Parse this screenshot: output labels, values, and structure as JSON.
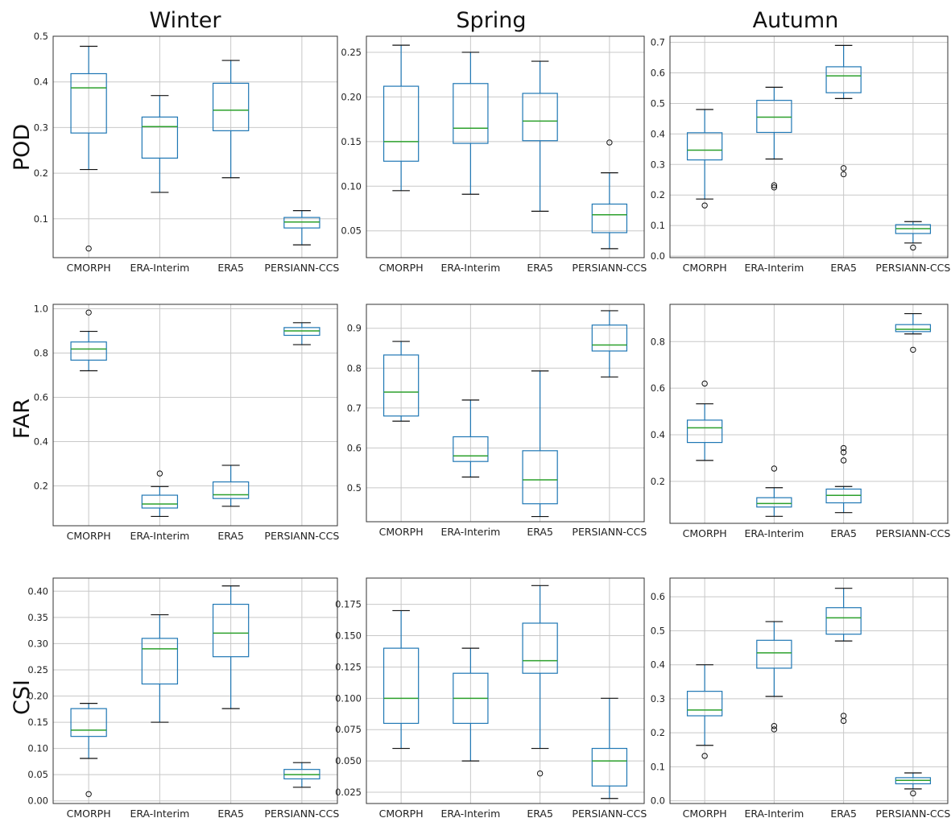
{
  "columns": [
    "Winter",
    "Spring",
    "Autumn"
  ],
  "rows": [
    "POD",
    "FAR",
    "CSI"
  ],
  "chart_data": [
    {
      "type": "box",
      "row": "POD",
      "column": "Winter",
      "categories": [
        "CMORPH",
        "ERA-Interim",
        "ERA5",
        "PERSIANN-CCS"
      ],
      "ylim": [
        0.015,
        0.5
      ],
      "yticks": [
        0.1,
        0.2,
        0.3,
        0.4,
        0.5
      ],
      "ytick_labels": [
        "0.1",
        "0.2",
        "0.3",
        "0.4",
        "0.5"
      ],
      "grid": true,
      "boxes": [
        {
          "whislo": 0.208,
          "q1": 0.288,
          "med": 0.387,
          "q3": 0.418,
          "whishi": 0.478,
          "fliers": [
            0.035
          ]
        },
        {
          "whislo": 0.158,
          "q1": 0.233,
          "med": 0.302,
          "q3": 0.323,
          "whishi": 0.37,
          "fliers": []
        },
        {
          "whislo": 0.19,
          "q1": 0.293,
          "med": 0.338,
          "q3": 0.397,
          "whishi": 0.447,
          "fliers": []
        },
        {
          "whislo": 0.043,
          "q1": 0.08,
          "med": 0.093,
          "q3": 0.103,
          "whishi": 0.118,
          "fliers": []
        }
      ]
    },
    {
      "type": "box",
      "row": "POD",
      "column": "Spring",
      "categories": [
        "CMORPH",
        "ERA-Interim",
        "ERA5",
        "PERSIANN-CCS"
      ],
      "ylim": [
        0.02,
        0.268
      ],
      "yticks": [
        0.05,
        0.1,
        0.15,
        0.2,
        0.25
      ],
      "ytick_labels": [
        "0.05",
        "0.10",
        "0.15",
        "0.20",
        "0.25"
      ],
      "grid": true,
      "boxes": [
        {
          "whislo": 0.095,
          "q1": 0.128,
          "med": 0.15,
          "q3": 0.212,
          "whishi": 0.258,
          "fliers": []
        },
        {
          "whislo": 0.091,
          "q1": 0.148,
          "med": 0.165,
          "q3": 0.215,
          "whishi": 0.25,
          "fliers": []
        },
        {
          "whislo": 0.072,
          "q1": 0.151,
          "med": 0.173,
          "q3": 0.204,
          "whishi": 0.24,
          "fliers": []
        },
        {
          "whislo": 0.03,
          "q1": 0.048,
          "med": 0.068,
          "q3": 0.08,
          "whishi": 0.115,
          "fliers": [
            0.149
          ]
        }
      ]
    },
    {
      "type": "box",
      "row": "POD",
      "column": "Autumn",
      "categories": [
        "CMORPH",
        "ERA-Interim",
        "ERA5",
        "PERSIANN-CCS"
      ],
      "ylim": [
        -0.005,
        0.72
      ],
      "yticks": [
        0,
        0.1,
        0.2,
        0.3,
        0.4,
        0.5,
        0.6,
        0.7
      ],
      "ytick_labels": [
        "0.0",
        "0.1",
        "0.2",
        "0.3",
        "0.4",
        "0.5",
        "0.6",
        "0.7"
      ],
      "grid": true,
      "boxes": [
        {
          "whislo": 0.187,
          "q1": 0.315,
          "med": 0.347,
          "q3": 0.404,
          "whishi": 0.48,
          "fliers": [
            0.166
          ]
        },
        {
          "whislo": 0.318,
          "q1": 0.405,
          "med": 0.455,
          "q3": 0.51,
          "whishi": 0.553,
          "fliers": [
            0.225,
            0.232
          ]
        },
        {
          "whislo": 0.516,
          "q1": 0.535,
          "med": 0.59,
          "q3": 0.62,
          "whishi": 0.69,
          "fliers": [
            0.268,
            0.288
          ]
        },
        {
          "whislo": 0.043,
          "q1": 0.074,
          "med": 0.09,
          "q3": 0.103,
          "whishi": 0.113,
          "fliers": [
            0.028
          ]
        }
      ]
    },
    {
      "type": "box",
      "row": "FAR",
      "column": "Winter",
      "categories": [
        "CMORPH",
        "ERA-Interim",
        "ERA5",
        "PERSIANN-CCS"
      ],
      "ylim": [
        0.02,
        1.02
      ],
      "yticks": [
        0.2,
        0.4,
        0.6,
        0.8,
        1.0
      ],
      "ytick_labels": [
        "0.2",
        "0.4",
        "0.6",
        "0.8",
        "1.0"
      ],
      "grid": true,
      "boxes": [
        {
          "whislo": 0.72,
          "q1": 0.768,
          "med": 0.818,
          "q3": 0.85,
          "whishi": 0.898,
          "fliers": [
            0.983
          ]
        },
        {
          "whislo": 0.062,
          "q1": 0.1,
          "med": 0.118,
          "q3": 0.158,
          "whishi": 0.197,
          "fliers": [
            0.256
          ]
        },
        {
          "whislo": 0.108,
          "q1": 0.143,
          "med": 0.16,
          "q3": 0.218,
          "whishi": 0.293,
          "fliers": []
        },
        {
          "whislo": 0.838,
          "q1": 0.88,
          "med": 0.9,
          "q3": 0.915,
          "whishi": 0.937,
          "fliers": []
        }
      ]
    },
    {
      "type": "box",
      "row": "FAR",
      "column": "Spring",
      "categories": [
        "CMORPH",
        "ERA-Interim",
        "ERA5",
        "PERSIANN-CCS"
      ],
      "ylim": [
        0.415,
        0.96
      ],
      "yticks": [
        0.5,
        0.6,
        0.7,
        0.8,
        0.9
      ],
      "ytick_labels": [
        "0.5",
        "0.6",
        "0.7",
        "0.8",
        "0.9"
      ],
      "grid": true,
      "boxes": [
        {
          "whislo": 0.667,
          "q1": 0.68,
          "med": 0.74,
          "q3": 0.833,
          "whishi": 0.867,
          "fliers": []
        },
        {
          "whislo": 0.527,
          "q1": 0.566,
          "med": 0.58,
          "q3": 0.628,
          "whishi": 0.72,
          "fliers": []
        },
        {
          "whislo": 0.428,
          "q1": 0.46,
          "med": 0.52,
          "q3": 0.593,
          "whishi": 0.793,
          "fliers": []
        },
        {
          "whislo": 0.778,
          "q1": 0.843,
          "med": 0.858,
          "q3": 0.908,
          "whishi": 0.944,
          "fliers": []
        }
      ]
    },
    {
      "type": "box",
      "row": "FAR",
      "column": "Autumn",
      "categories": [
        "CMORPH",
        "ERA-Interim",
        "ERA5",
        "PERSIANN-CCS"
      ],
      "ylim": [
        0.02,
        0.96
      ],
      "yticks": [
        0.2,
        0.4,
        0.6,
        0.8
      ],
      "ytick_labels": [
        "0.2",
        "0.4",
        "0.6",
        "0.8"
      ],
      "grid": true,
      "boxes": [
        {
          "whislo": 0.29,
          "q1": 0.367,
          "med": 0.43,
          "q3": 0.463,
          "whishi": 0.533,
          "fliers": [
            0.62
          ]
        },
        {
          "whislo": 0.05,
          "q1": 0.09,
          "med": 0.105,
          "q3": 0.13,
          "whishi": 0.173,
          "fliers": [
            0.255
          ]
        },
        {
          "whislo": 0.066,
          "q1": 0.108,
          "med": 0.14,
          "q3": 0.167,
          "whishi": 0.178,
          "fliers": [
            0.29,
            0.325,
            0.343
          ]
        },
        {
          "whislo": 0.833,
          "q1": 0.843,
          "med": 0.853,
          "q3": 0.873,
          "whishi": 0.92,
          "fliers": [
            0.765
          ]
        }
      ]
    },
    {
      "type": "box",
      "row": "CSI",
      "column": "Winter",
      "categories": [
        "CMORPH",
        "ERA-Interim",
        "ERA5",
        "PERSIANN-CCS"
      ],
      "ylim": [
        -0.005,
        0.425
      ],
      "yticks": [
        0,
        0.05,
        0.1,
        0.15,
        0.2,
        0.25,
        0.3,
        0.35,
        0.4
      ],
      "ytick_labels": [
        "0.00",
        "0.05",
        "0.10",
        "0.15",
        "0.20",
        "0.25",
        "0.30",
        "0.35",
        "0.40"
      ],
      "grid": true,
      "boxes": [
        {
          "whislo": 0.081,
          "q1": 0.123,
          "med": 0.135,
          "q3": 0.176,
          "whishi": 0.186,
          "fliers": [
            0.013
          ]
        },
        {
          "whislo": 0.15,
          "q1": 0.223,
          "med": 0.29,
          "q3": 0.31,
          "whishi": 0.355,
          "fliers": []
        },
        {
          "whislo": 0.176,
          "q1": 0.275,
          "med": 0.32,
          "q3": 0.375,
          "whishi": 0.41,
          "fliers": []
        },
        {
          "whislo": 0.026,
          "q1": 0.042,
          "med": 0.05,
          "q3": 0.06,
          "whishi": 0.073,
          "fliers": []
        }
      ]
    },
    {
      "type": "box",
      "row": "CSI",
      "column": "Spring",
      "categories": [
        "CMORPH",
        "ERA-Interim",
        "ERA5",
        "PERSIANN-CCS"
      ],
      "ylim": [
        0.016,
        0.196
      ],
      "yticks": [
        0.025,
        0.05,
        0.075,
        0.1,
        0.125,
        0.15,
        0.175
      ],
      "ytick_labels": [
        "0.025",
        "0.050",
        "0.075",
        "0.100",
        "0.125",
        "0.150",
        "0.175"
      ],
      "grid": true,
      "boxes": [
        {
          "whislo": 0.06,
          "q1": 0.08,
          "med": 0.1,
          "q3": 0.14,
          "whishi": 0.17,
          "fliers": []
        },
        {
          "whislo": 0.05,
          "q1": 0.08,
          "med": 0.1,
          "q3": 0.12,
          "whishi": 0.14,
          "fliers": []
        },
        {
          "whislo": 0.06,
          "q1": 0.12,
          "med": 0.13,
          "q3": 0.16,
          "whishi": 0.19,
          "fliers": [
            0.04
          ]
        },
        {
          "whislo": 0.02,
          "q1": 0.03,
          "med": 0.05,
          "q3": 0.06,
          "whishi": 0.1,
          "fliers": []
        }
      ]
    },
    {
      "type": "box",
      "row": "CSI",
      "column": "Autumn",
      "categories": [
        "CMORPH",
        "ERA-Interim",
        "ERA5",
        "PERSIANN-CCS"
      ],
      "ylim": [
        -0.008,
        0.655
      ],
      "yticks": [
        0,
        0.1,
        0.2,
        0.3,
        0.4,
        0.5,
        0.6
      ],
      "ytick_labels": [
        "0.0",
        "0.1",
        "0.2",
        "0.3",
        "0.4",
        "0.5",
        "0.6"
      ],
      "grid": true,
      "boxes": [
        {
          "whislo": 0.163,
          "q1": 0.25,
          "med": 0.267,
          "q3": 0.322,
          "whishi": 0.4,
          "fliers": [
            0.132
          ]
        },
        {
          "whislo": 0.307,
          "q1": 0.39,
          "med": 0.435,
          "q3": 0.472,
          "whishi": 0.527,
          "fliers": [
            0.21,
            0.22
          ]
        },
        {
          "whislo": 0.47,
          "q1": 0.49,
          "med": 0.538,
          "q3": 0.568,
          "whishi": 0.625,
          "fliers": [
            0.235,
            0.25
          ]
        },
        {
          "whislo": 0.035,
          "q1": 0.05,
          "med": 0.06,
          "q3": 0.068,
          "whishi": 0.082,
          "fliers": [
            0.022
          ]
        }
      ]
    }
  ]
}
